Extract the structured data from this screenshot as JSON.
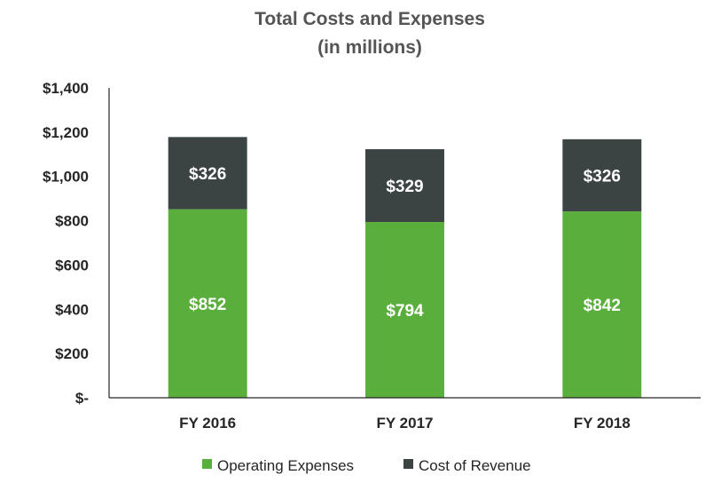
{
  "chart_data": {
    "type": "bar",
    "stacked": true,
    "title": "Total Costs and Expenses",
    "subtitle": "(in millions)",
    "categories": [
      "FY 2016",
      "FY 2017",
      "FY 2018"
    ],
    "series": [
      {
        "name": "Operating Expenses",
        "color": "#5AAE3C",
        "values": [
          852,
          794,
          842
        ],
        "labels": [
          "$852",
          "$794",
          "$842"
        ]
      },
      {
        "name": "Cost of Revenue",
        "color": "#3B4343",
        "values": [
          326,
          329,
          326
        ],
        "labels": [
          "$326",
          "$329",
          "$326"
        ]
      }
    ],
    "ylim": [
      0,
      1400
    ],
    "yticks": [
      0,
      200,
      400,
      600,
      800,
      1000,
      1200,
      1400
    ],
    "ytick_labels": [
      "$-",
      "$200",
      "$400",
      "$600",
      "$800",
      "$1,000",
      "$1,200",
      "$1,400"
    ],
    "xlabel": "",
    "ylabel": "",
    "legend_position": "bottom",
    "grid": false
  }
}
